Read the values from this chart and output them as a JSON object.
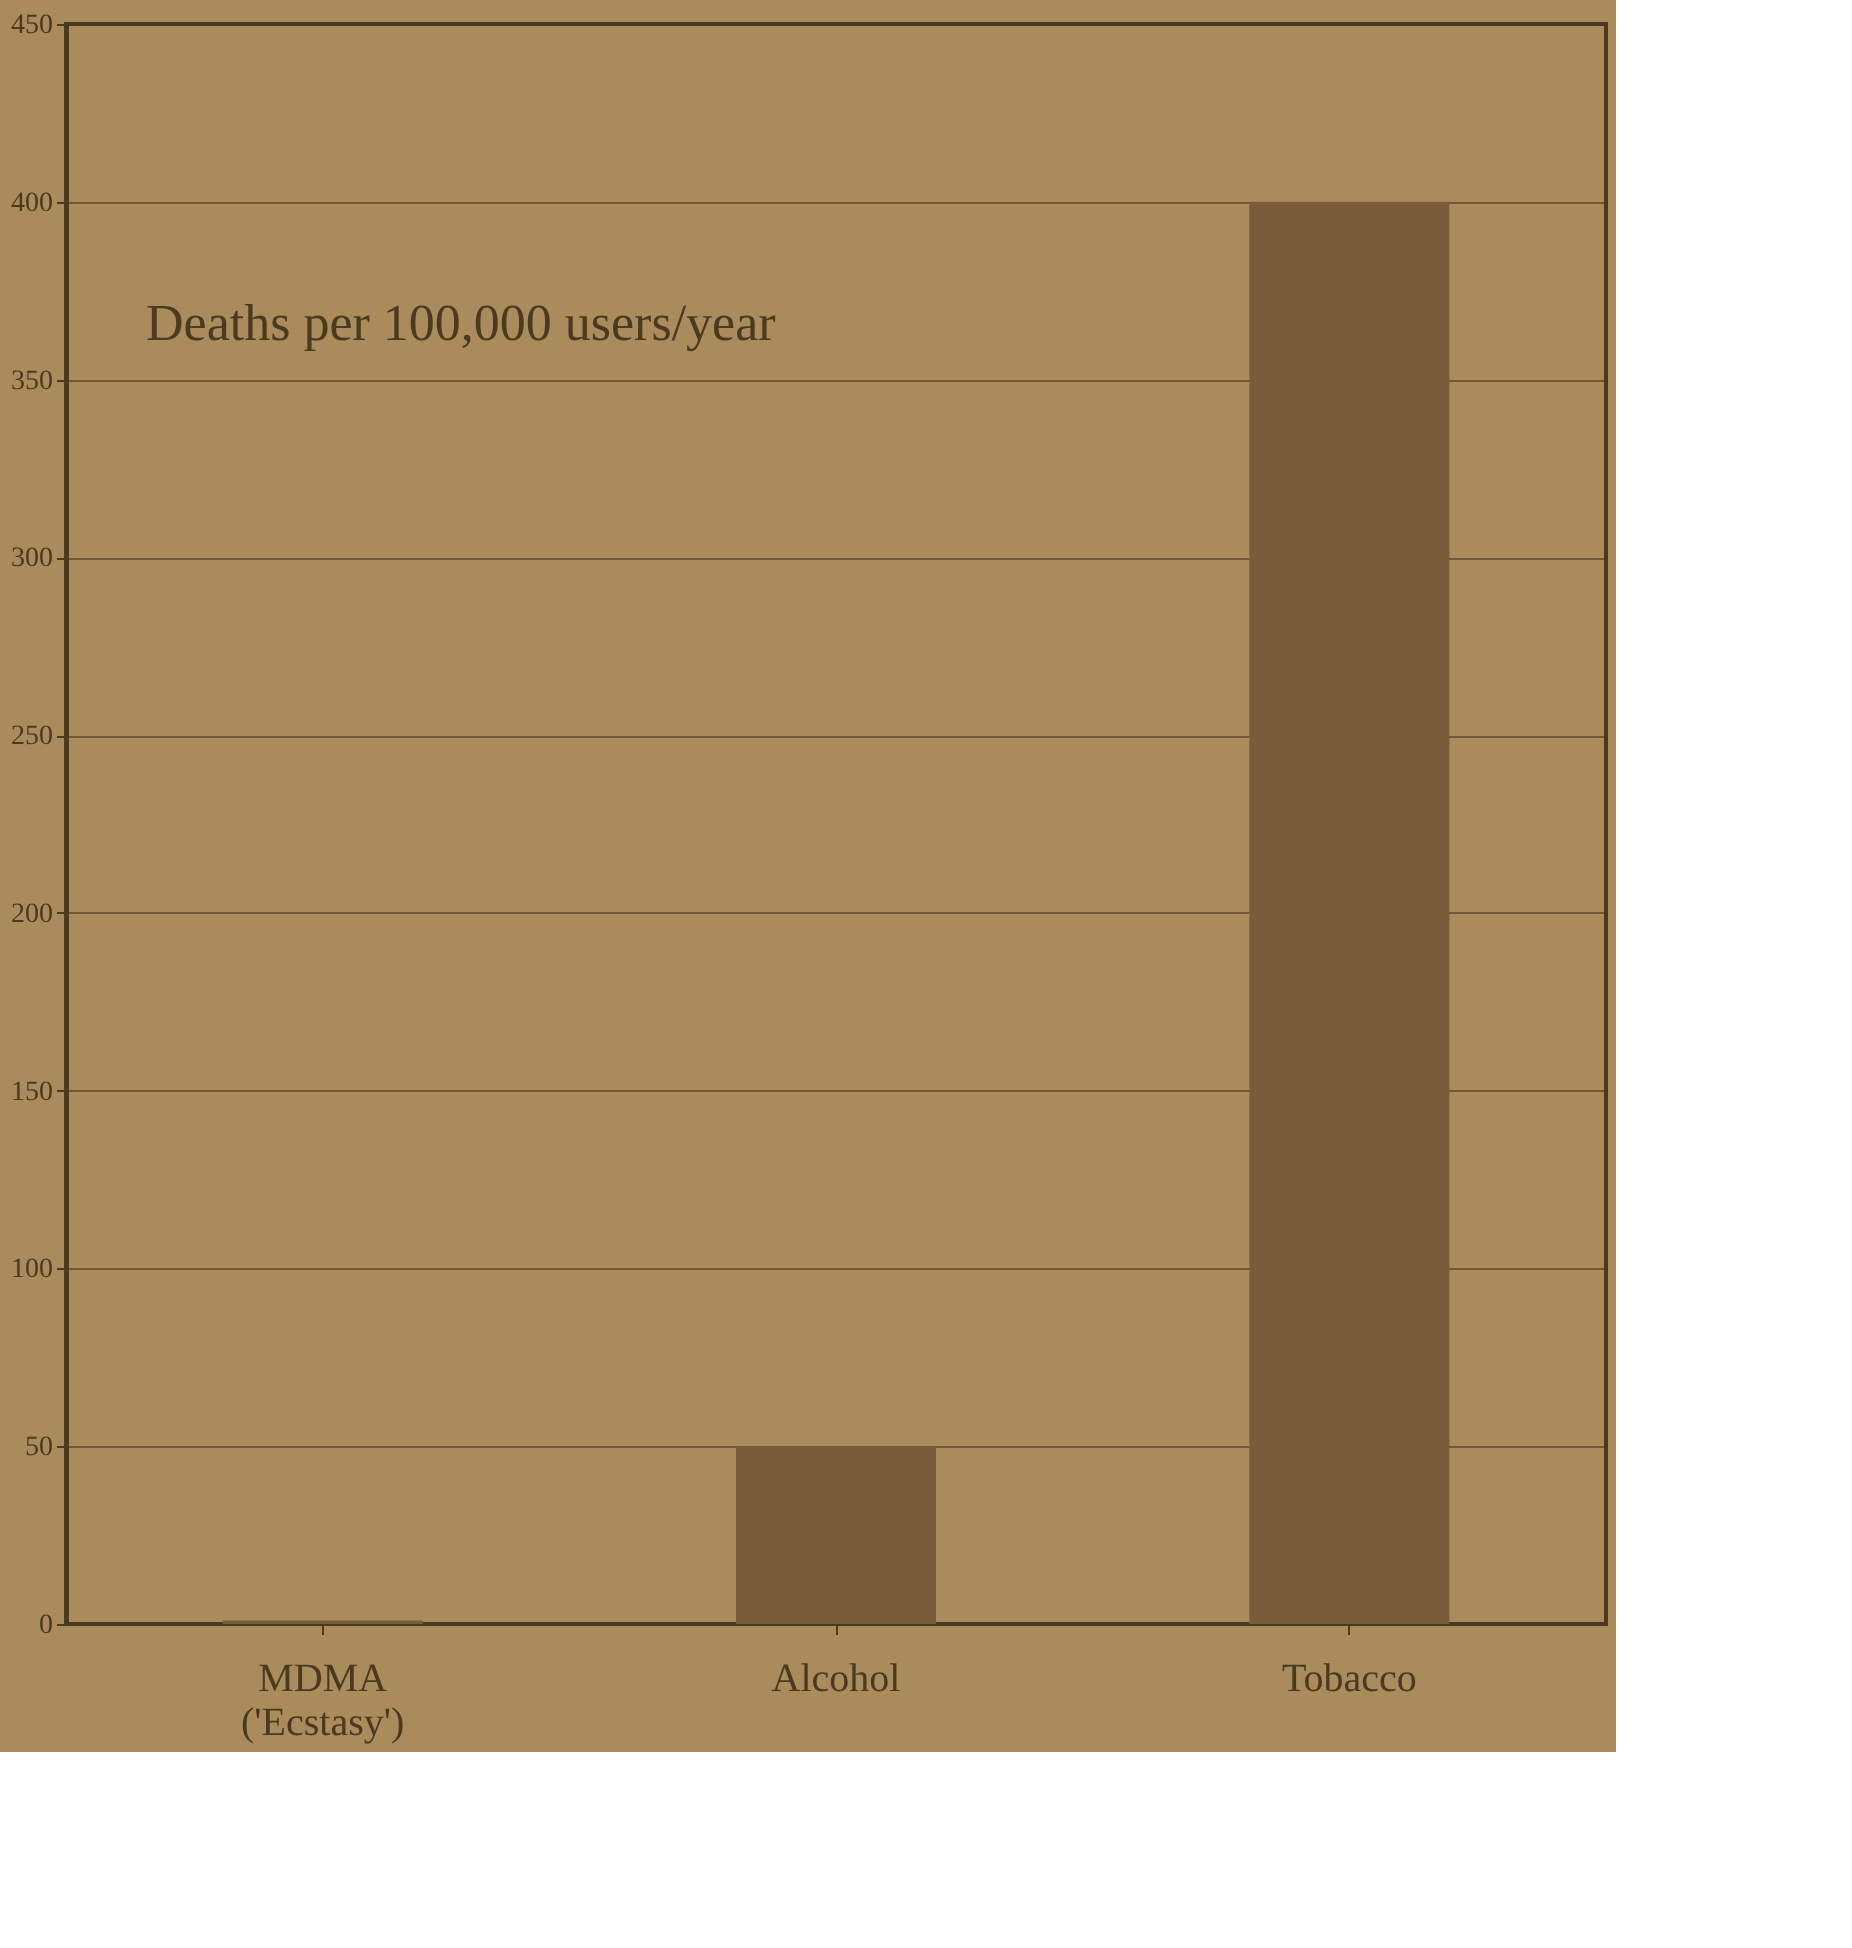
{
  "chart_data": {
    "type": "bar",
    "annotations": [
      "Deaths per 100,000 users/year"
    ],
    "categories": [
      "MDMA\n('Ecstasy')",
      "Alcohol",
      "Tobacco"
    ],
    "values": [
      1,
      50,
      400
    ],
    "color": "#7a5c3a",
    "ylim": [
      0,
      450
    ],
    "yticks": [
      0,
      50,
      100,
      150,
      200,
      250,
      300,
      350,
      400,
      450
    ],
    "grid": "y"
  }
}
